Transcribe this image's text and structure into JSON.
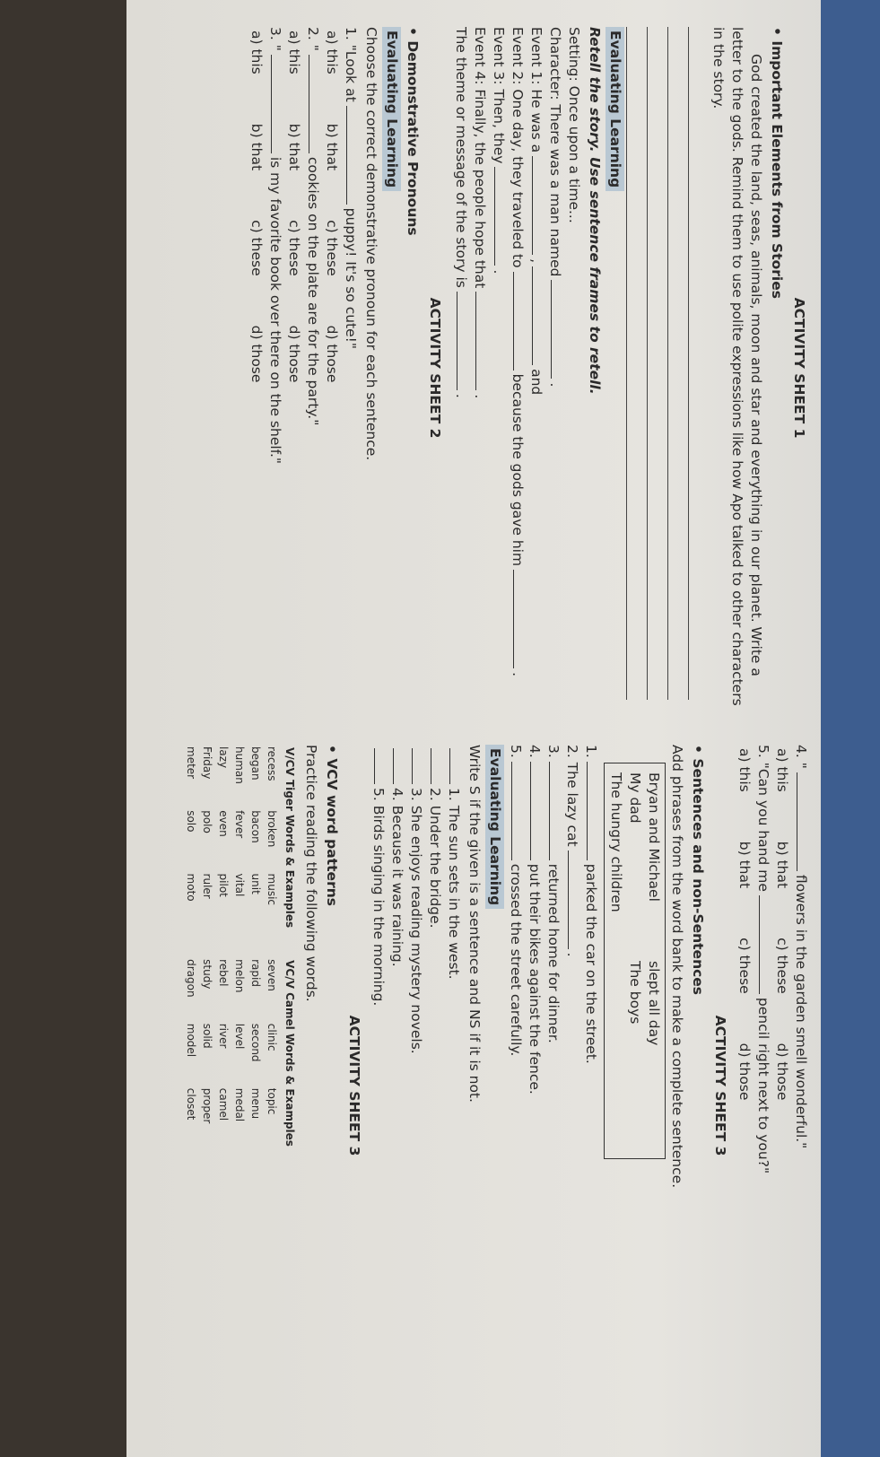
{
  "sheet1": {
    "title": "ACTIVITY SHEET 1",
    "heading": "Important Elements from Stories",
    "paragraph": "God created the land, seas, animals, moon and star and everything in our planet. Write a letter to the gods. Remind them to use polite expressions like how Apo talked to other characters in the story."
  },
  "retell": {
    "label": "Evaluating Learning",
    "instruction": "Retell the story. Use sentence frames to retell.",
    "lines": [
      [
        "Setting: Once upon a time..."
      ],
      [
        "Character: There was a man named",
        "."
      ],
      [
        "Event 1: He was a",
        ",",
        "and"
      ],
      [
        "Event 2: One day, they traveled to",
        "because the gods gave him",
        "."
      ],
      [
        "Event 3: Then, they",
        "."
      ],
      [
        "Event 4: Finally, the people hope that",
        "."
      ],
      [
        "The theme or message of the story is",
        "."
      ]
    ]
  },
  "sheet2": {
    "title": "ACTIVITY SHEET 2",
    "heading": "Demonstrative Pronouns",
    "label": "Evaluating Learning",
    "instruction": "Choose the correct demonstrative pronoun for each sentence.",
    "questions": [
      {
        "parts": [
          "1. \"Look at",
          "puppy! It's so cute!\""
        ],
        "options": [
          "a) this",
          "b) that",
          "c) these",
          "d) those"
        ]
      },
      {
        "parts": [
          "2. \"",
          "cookies on the plate are for the party.\""
        ],
        "options": [
          "a) this",
          "b) that",
          "c) these",
          "d) those"
        ]
      },
      {
        "parts": [
          "3. \"",
          "is my favorite book over there on the shelf.\""
        ],
        "options": [
          "a) this",
          "b) that",
          "c) these",
          "d) those"
        ]
      },
      {
        "parts": [
          "4. \"",
          "flowers in the garden smell wonderful.\""
        ],
        "options": [
          "a) this",
          "b) that",
          "c) these",
          "d) those"
        ]
      },
      {
        "parts": [
          "5. \"Can you hand me",
          "pencil right next to you?\""
        ],
        "options": [
          "a) this",
          "b) that",
          "c) these",
          "d) those"
        ]
      }
    ]
  },
  "sheet3a": {
    "title": "ACTIVITY SHEET 3",
    "heading": "Sentences and non-Sentences",
    "instruction": "Add phrases from the word bank to make a complete sentence.",
    "word_bank": [
      "Bryan and Michael",
      "slept all day",
      "My dad",
      "The boys",
      "The hungry children"
    ],
    "items": [
      [
        "1.",
        "parked the car on the street."
      ],
      [
        "2. The lazy cat",
        "."
      ],
      [
        "3.",
        "returned home for dinner."
      ],
      [
        "4.",
        "put their bikes against the fence."
      ],
      [
        "5.",
        "crossed the street carefully."
      ]
    ],
    "label": "Evaluating Learning",
    "instruction2": "Write S if the given is a sentence and NS if it is not.",
    "statements": [
      "1. The sun sets in the west.",
      "2. Under the bridge.",
      "3. She enjoys reading mystery novels.",
      "4. Because it was raining.",
      "5. Birds singing in the morning."
    ]
  },
  "sheet3b": {
    "title": "ACTIVITY SHEET 3",
    "heading": "VCV word patterns",
    "instruction": "Practice reading the following words.",
    "tables": [
      {
        "header": "V/CV Tiger Words & Examples",
        "rows": [
          [
            "recess",
            "broken",
            "music"
          ],
          [
            "began",
            "bacon",
            "unit"
          ],
          [
            "human",
            "fever",
            "vital"
          ],
          [
            "lazy",
            "even",
            "pilot"
          ],
          [
            "Friday",
            "polo",
            "ruler"
          ],
          [
            "meter",
            "solo",
            "moto"
          ]
        ]
      },
      {
        "header": "VC/V Camel Words & Examples",
        "rows": [
          [
            "seven",
            "clinic",
            "topic"
          ],
          [
            "rapid",
            "second",
            "menu"
          ],
          [
            "melon",
            "level",
            "medal"
          ],
          [
            "rebel",
            "river",
            "camel"
          ],
          [
            "study",
            "solid",
            "proper"
          ],
          [
            "dragon",
            "model",
            "closet"
          ]
        ]
      }
    ]
  }
}
